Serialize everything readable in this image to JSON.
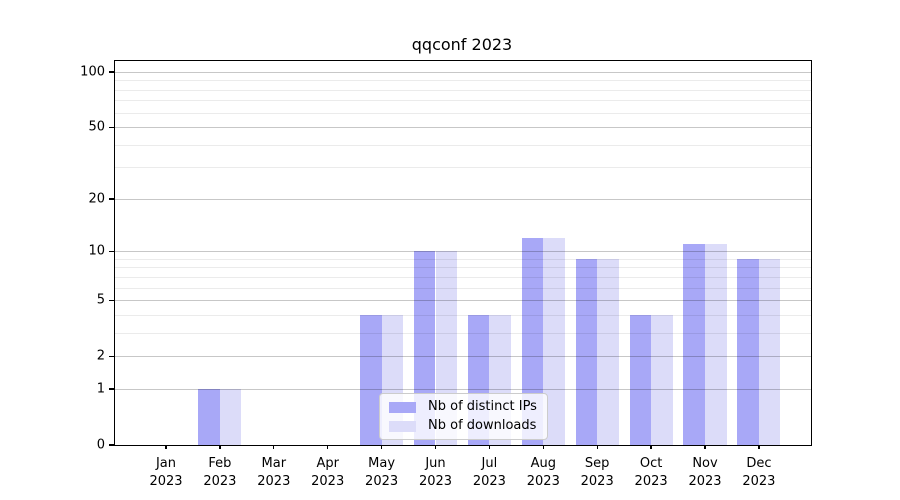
{
  "chart_data": {
    "type": "bar",
    "title": "qqconf 2023",
    "y_scale": "log1p",
    "grid": "on",
    "legend_position": "lower center inside plot",
    "categories": [
      {
        "month": "Jan",
        "year": "2023"
      },
      {
        "month": "Feb",
        "year": "2023"
      },
      {
        "month": "Mar",
        "year": "2023"
      },
      {
        "month": "Apr",
        "year": "2023"
      },
      {
        "month": "May",
        "year": "2023"
      },
      {
        "month": "Jun",
        "year": "2023"
      },
      {
        "month": "Jul",
        "year": "2023"
      },
      {
        "month": "Aug",
        "year": "2023"
      },
      {
        "month": "Sep",
        "year": "2023"
      },
      {
        "month": "Oct",
        "year": "2023"
      },
      {
        "month": "Nov",
        "year": "2023"
      },
      {
        "month": "Dec",
        "year": "2023"
      }
    ],
    "series": [
      {
        "name": "Nb of distinct IPs",
        "color": "#a8a8f7",
        "values": [
          0,
          1,
          0,
          0,
          4,
          10,
          4,
          12,
          9,
          4,
          11,
          9
        ]
      },
      {
        "name": "Nb of downloads",
        "color": "#dcdcf9",
        "values": [
          0,
          1,
          0,
          0,
          4,
          10,
          4,
          12,
          9,
          4,
          11,
          9
        ]
      }
    ],
    "y_major_ticks": [
      0,
      1,
      2,
      5,
      10,
      20,
      50,
      100
    ],
    "y_minor_ticks": [
      3,
      4,
      6,
      7,
      8,
      9,
      30,
      40,
      60,
      70,
      80,
      90
    ],
    "ylim": [
      0,
      115
    ]
  },
  "colors": {
    "major_grid": "rgba(0,0,0,0.22)",
    "minor_grid": "rgba(0,0,0,0.08)",
    "spine": "#000000"
  }
}
